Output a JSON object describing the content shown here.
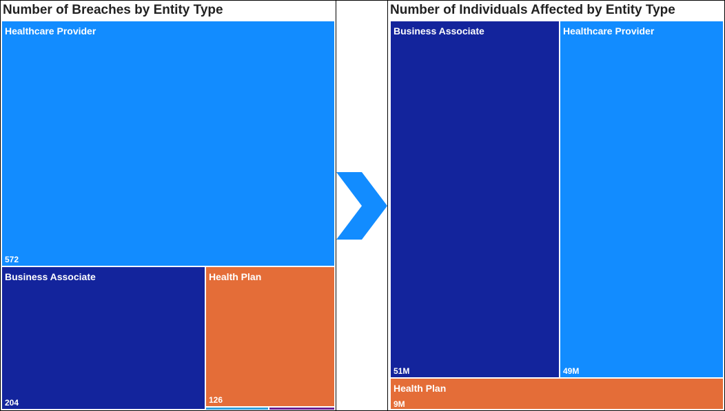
{
  "colors": {
    "healthcare_provider": "#128CFF",
    "business_associate": "#13249C",
    "health_plan": "#E46D38",
    "small_1": "#2F9FDB",
    "small_2": "#6B1F8F"
  },
  "arrow": {
    "icon": "chevron-right-icon",
    "color": "#128CFF"
  },
  "chart_data": [
    {
      "type": "treemap",
      "title": "Number of Breaches by Entity Type",
      "items": [
        {
          "label": "Healthcare Provider",
          "value_label": "572",
          "value": 572
        },
        {
          "label": "Business Associate",
          "value_label": "204",
          "value": 204
        },
        {
          "label": "Health Plan",
          "value_label": "126",
          "value": 126
        },
        {
          "label": "",
          "value_label": "",
          "value": 3
        },
        {
          "label": "",
          "value_label": "",
          "value": 3
        }
      ]
    },
    {
      "type": "treemap",
      "title": "Number of Individuals Affected by Entity Type",
      "items": [
        {
          "label": "Business Associate",
          "value_label": "51M",
          "value": 51
        },
        {
          "label": "Healthcare Provider",
          "value_label": "49M",
          "value": 49
        },
        {
          "label": "Health Plan",
          "value_label": "9M",
          "value": 9
        }
      ]
    }
  ]
}
